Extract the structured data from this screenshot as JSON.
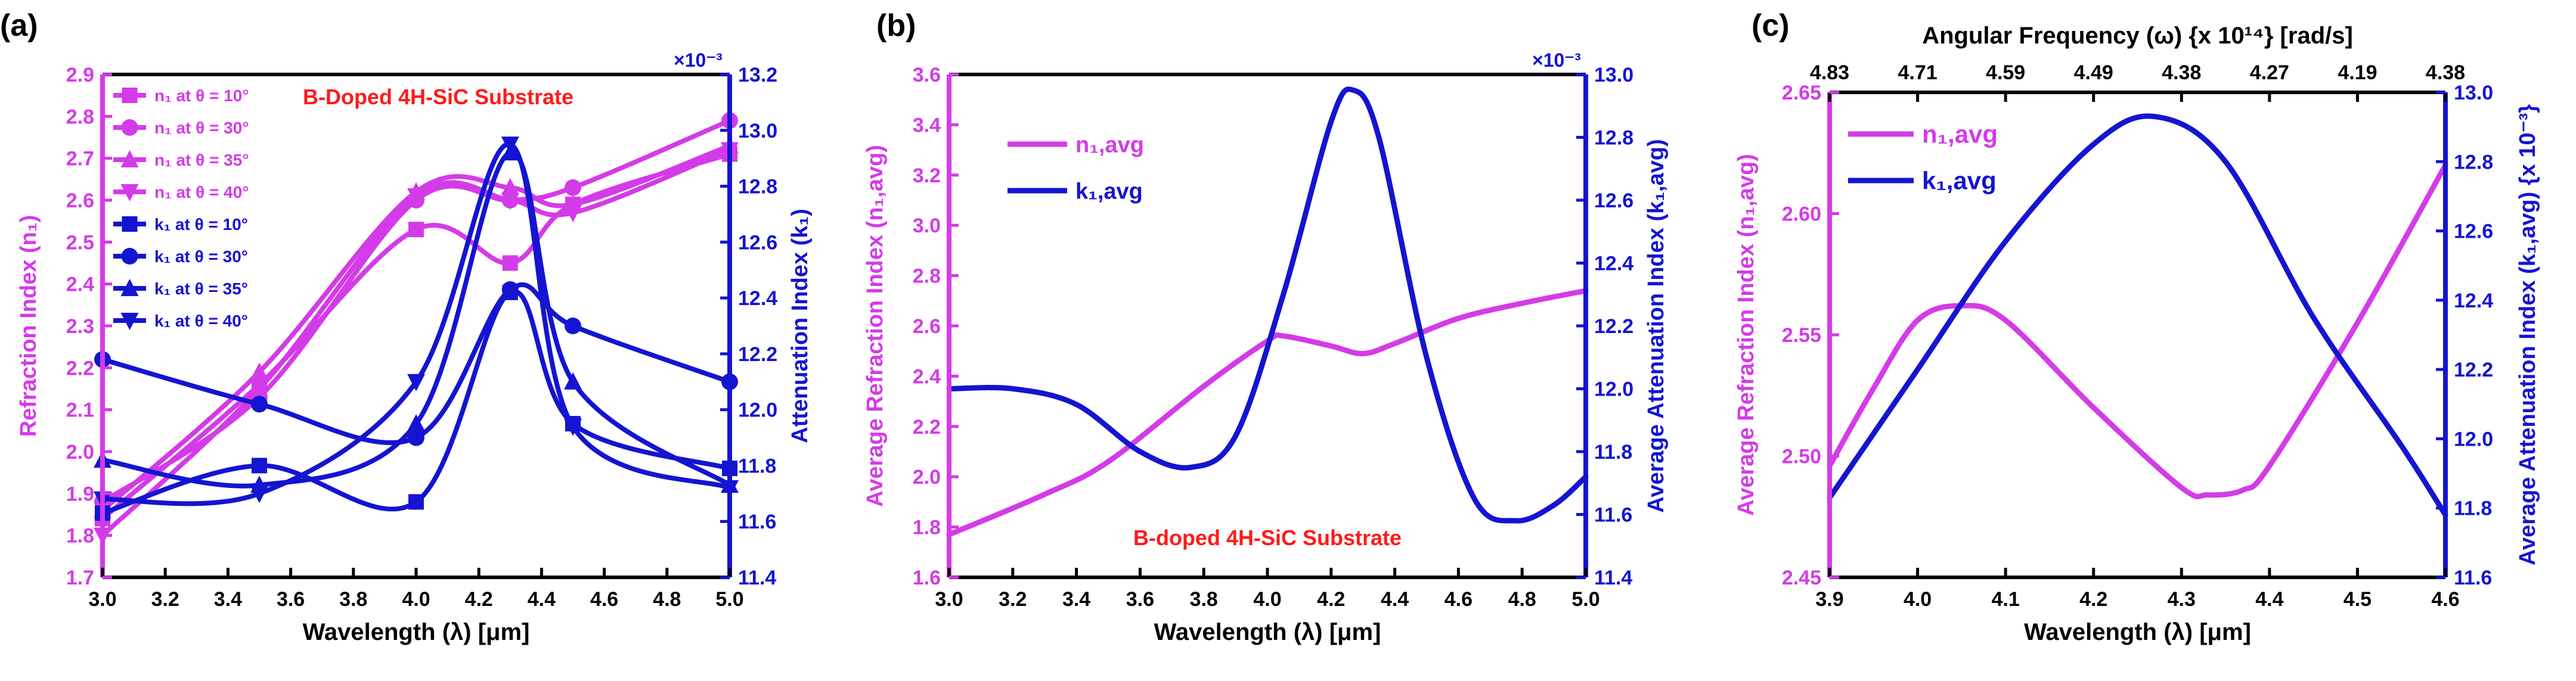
{
  "colors": {
    "magenta": "#D43BE8",
    "blue": "#1414D2",
    "red": "#FF1A1A",
    "black": "#000000"
  },
  "chart_data": [
    {
      "panel_label": "(a)",
      "type": "line",
      "annotation": "B-Doped 4H-SiC Substrate",
      "xlabel": "Wavelength (λ) [μm]",
      "ylabel_left": "Refraction Index (n₁)",
      "ylabel_right": "Attenuation Index (k₁)",
      "right_multiplier": "×10⁻³",
      "xlim": [
        3.0,
        5.0
      ],
      "ylim_left": [
        1.7,
        2.9
      ],
      "ylim_right": [
        11.4,
        13.2
      ],
      "xticks": [
        "3.0",
        "3.2",
        "3.4",
        "3.6",
        "3.8",
        "4.0",
        "4.2",
        "4.4",
        "4.6",
        "4.8",
        "5.0"
      ],
      "yticks_left": [
        "1.7",
        "1.8",
        "1.9",
        "2.0",
        "2.1",
        "2.2",
        "2.3",
        "2.4",
        "2.5",
        "2.6",
        "2.7",
        "2.8",
        "2.9"
      ],
      "yticks_right": [
        "11.4",
        "11.6",
        "11.8",
        "12.0",
        "12.2",
        "12.4",
        "12.6",
        "12.8",
        "13.0",
        "13.2"
      ],
      "legend_position": "top-left",
      "series": [
        {
          "name": "n₁ at θ = 10°",
          "axis": "left",
          "color": "magenta",
          "marker": "square",
          "x": [
            3.0,
            3.5,
            4.0,
            4.3,
            4.5,
            5.0
          ],
          "y": [
            1.84,
            2.16,
            2.53,
            2.45,
            2.59,
            2.71
          ],
          "markers_x": [
            3.0,
            3.5,
            4.0,
            4.3,
            4.5,
            5.0
          ]
        },
        {
          "name": "n₁ at θ = 30°",
          "axis": "left",
          "color": "magenta",
          "marker": "circle",
          "x": [
            3.0,
            3.5,
            4.0,
            4.3,
            4.5,
            5.0
          ],
          "y": [
            1.88,
            2.13,
            2.6,
            2.6,
            2.63,
            2.79
          ],
          "markers_x": [
            3.0,
            3.5,
            4.0,
            4.3,
            4.5,
            5.0
          ]
        },
        {
          "name": "n₁ at θ = 35°",
          "axis": "left",
          "color": "magenta",
          "marker": "triangle-up",
          "x": [
            3.0,
            3.5,
            4.0,
            4.3,
            4.5,
            5.0
          ],
          "y": [
            1.86,
            2.19,
            2.62,
            2.63,
            2.59,
            2.73
          ],
          "markers_x": [
            3.0,
            3.5,
            4.0,
            4.3,
            4.5,
            5.0
          ]
        },
        {
          "name": "n₁ at θ = 40°",
          "axis": "left",
          "color": "magenta",
          "marker": "triangle-down",
          "x": [
            3.0,
            3.5,
            4.0,
            4.3,
            4.5,
            5.0
          ],
          "y": [
            1.8,
            2.15,
            2.61,
            2.6,
            2.57,
            2.72
          ],
          "markers_x": [
            3.0,
            3.5,
            4.0,
            4.3,
            4.5,
            5.0
          ]
        },
        {
          "name": "k₁ at θ = 10°",
          "axis": "right",
          "color": "blue",
          "marker": "square",
          "x": [
            3.0,
            3.5,
            4.0,
            4.3,
            4.5,
            5.0
          ],
          "y": [
            11.63,
            11.8,
            11.67,
            12.42,
            11.95,
            11.79
          ],
          "markers_x": [
            3.0,
            3.5,
            4.0,
            4.3,
            4.5,
            5.0
          ]
        },
        {
          "name": "k₁ at θ = 30°",
          "axis": "right",
          "color": "blue",
          "marker": "circle",
          "x": [
            3.0,
            3.5,
            4.0,
            4.3,
            4.5,
            5.0
          ],
          "y": [
            12.18,
            12.02,
            11.9,
            12.43,
            12.3,
            12.1
          ],
          "markers_x": [
            3.0,
            3.5,
            4.0,
            4.3,
            4.5,
            5.0
          ]
        },
        {
          "name": "k₁ at θ = 35°",
          "axis": "right",
          "color": "blue",
          "marker": "triangle-up",
          "x": [
            3.0,
            3.5,
            4.0,
            4.3,
            4.5,
            5.0
          ],
          "y": [
            11.82,
            11.73,
            11.95,
            12.92,
            12.1,
            11.73
          ],
          "markers_x": [
            3.0,
            3.5,
            4.0,
            4.3,
            4.5,
            5.0
          ]
        },
        {
          "name": "k₁ at θ = 40°",
          "axis": "right",
          "color": "blue",
          "marker": "triangle-down",
          "x": [
            3.0,
            3.5,
            4.0,
            4.3,
            4.5,
            5.0
          ],
          "y": [
            11.68,
            11.7,
            12.1,
            12.95,
            11.94,
            11.72
          ],
          "markers_x": [
            3.0,
            3.5,
            4.0,
            4.3,
            4.5,
            5.0
          ]
        }
      ]
    },
    {
      "panel_label": "(b)",
      "type": "line",
      "annotation": "B-doped 4H-SiC Substrate",
      "xlabel": "Wavelength (λ) [μm]",
      "ylabel_left": "Average Refraction Index (n₁,avg)",
      "ylabel_right": "Average Attenuation Index (k₁,avg)",
      "right_multiplier": "×10⁻³",
      "xlim": [
        3.0,
        5.0
      ],
      "ylim_left": [
        1.6,
        3.6
      ],
      "ylim_right": [
        11.4,
        13.0
      ],
      "xticks": [
        "3.0",
        "3.2",
        "3.4",
        "3.6",
        "3.8",
        "4.0",
        "4.2",
        "4.4",
        "4.6",
        "4.8",
        "5.0"
      ],
      "yticks_left": [
        "1.6",
        "1.8",
        "2.0",
        "2.2",
        "2.4",
        "2.6",
        "2.8",
        "3.0",
        "3.2",
        "3.4",
        "3.6"
      ],
      "yticks_right": [
        "11.4",
        "11.6",
        "11.8",
        "12.0",
        "12.2",
        "12.4",
        "12.6",
        "12.8",
        "13.0"
      ],
      "legend_position": "top-left",
      "series": [
        {
          "name": "n₁,avg",
          "axis": "left",
          "color": "magenta",
          "x": [
            3.0,
            3.3,
            3.5,
            3.8,
            4.0,
            4.05,
            4.2,
            4.3,
            4.4,
            4.6,
            4.8,
            5.0
          ],
          "y": [
            1.77,
            1.93,
            2.06,
            2.36,
            2.54,
            2.56,
            2.52,
            2.49,
            2.53,
            2.63,
            2.69,
            2.74
          ]
        },
        {
          "name": "k₁,avg",
          "axis": "right",
          "color": "blue",
          "x": [
            3.0,
            3.2,
            3.4,
            3.6,
            3.76,
            3.9,
            4.05,
            4.2,
            4.27,
            4.35,
            4.5,
            4.65,
            4.78,
            4.9,
            5.0
          ],
          "y": [
            12.0,
            12.0,
            11.95,
            11.8,
            11.75,
            11.85,
            12.3,
            12.85,
            12.95,
            12.8,
            12.1,
            11.65,
            11.58,
            11.63,
            11.72
          ]
        }
      ]
    },
    {
      "panel_label": "(c)",
      "type": "line",
      "xlabel": "Wavelength (λ) [μm]",
      "top_xlabel": "Angular Frequency (ω) {x 10¹⁴} [rad/s]",
      "ylabel_left": "Average Refraction Index (n₁,avg)",
      "ylabel_right": "Average Attenuation Index (k₁,avg) {x 10⁻³}",
      "xlim": [
        3.9,
        4.6
      ],
      "ylim_left": [
        2.45,
        2.65
      ],
      "ylim_right": [
        11.6,
        13.0
      ],
      "xticks": [
        "3.9",
        "4.0",
        "4.1",
        "4.2",
        "4.3",
        "4.4",
        "4.5",
        "4.6"
      ],
      "top_xticks": [
        "4.83",
        "4.71",
        "4.59",
        "4.49",
        "4.38",
        "4.27",
        "4.19",
        "4.38"
      ],
      "yticks_left": [
        "2.45",
        "2.50",
        "2.55",
        "2.60",
        "2.65"
      ],
      "yticks_right": [
        "11.6",
        "11.8",
        "12.0",
        "12.2",
        "12.4",
        "12.6",
        "12.8",
        "13.0"
      ],
      "legend_position": "top-left",
      "series": [
        {
          "name": "n₁,avg",
          "axis": "left",
          "color": "magenta",
          "x": [
            3.9,
            3.95,
            4.0,
            4.05,
            4.1,
            4.2,
            4.3,
            4.33,
            4.37,
            4.4,
            4.5,
            4.6
          ],
          "y": [
            2.496,
            2.528,
            2.556,
            2.562,
            2.556,
            2.52,
            2.487,
            2.484,
            2.486,
            2.496,
            2.555,
            2.62
          ]
        },
        {
          "name": "k₁,avg",
          "axis": "right",
          "color": "blue",
          "x": [
            3.9,
            4.0,
            4.1,
            4.2,
            4.27,
            4.35,
            4.45,
            4.55,
            4.6
          ],
          "y": [
            11.83,
            12.2,
            12.57,
            12.85,
            12.93,
            12.8,
            12.35,
            11.98,
            11.78
          ]
        }
      ]
    }
  ]
}
